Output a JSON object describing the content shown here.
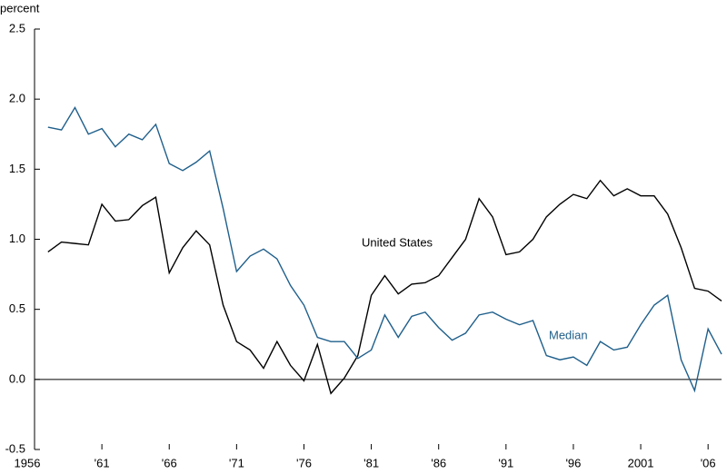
{
  "chart_data": {
    "type": "line",
    "y_axis_label": "percent",
    "x": [
      1957,
      1958,
      1959,
      1960,
      1961,
      1962,
      1963,
      1964,
      1965,
      1966,
      1967,
      1968,
      1969,
      1970,
      1971,
      1972,
      1973,
      1974,
      1975,
      1976,
      1977,
      1978,
      1979,
      1980,
      1981,
      1982,
      1983,
      1984,
      1985,
      1986,
      1987,
      1988,
      1989,
      1990,
      1991,
      1992,
      1993,
      1994,
      1995,
      1996,
      1997,
      1998,
      1999,
      2000,
      2001,
      2002,
      2003,
      2004,
      2005,
      2006,
      2007
    ],
    "series": [
      {
        "name": "United States",
        "color": "#000000",
        "values": [
          0.91,
          0.98,
          0.97,
          0.96,
          1.25,
          1.13,
          1.14,
          1.24,
          1.3,
          0.76,
          0.94,
          1.06,
          0.96,
          0.53,
          0.27,
          0.21,
          0.08,
          0.27,
          0.1,
          -0.01,
          0.25,
          -0.1,
          0.01,
          0.17,
          0.6,
          0.74,
          0.61,
          0.68,
          0.69,
          0.74,
          0.87,
          1.0,
          1.29,
          1.16,
          0.89,
          0.91,
          1.0,
          1.16,
          1.25,
          1.32,
          1.29,
          1.42,
          1.31,
          1.36,
          1.31,
          1.31,
          1.18,
          0.94,
          0.65,
          0.63,
          0.56
        ]
      },
      {
        "name": "Median",
        "color": "#1f5f8b",
        "values": [
          1.8,
          1.78,
          1.94,
          1.75,
          1.79,
          1.66,
          1.75,
          1.71,
          1.82,
          1.54,
          1.49,
          1.55,
          1.63,
          1.22,
          0.77,
          0.88,
          0.93,
          0.86,
          0.67,
          0.53,
          0.3,
          0.27,
          0.27,
          0.15,
          0.21,
          0.46,
          0.3,
          0.45,
          0.48,
          0.37,
          0.28,
          0.33,
          0.46,
          0.48,
          0.43,
          0.39,
          0.42,
          0.17,
          0.14,
          0.16,
          0.1,
          0.27,
          0.21,
          0.23,
          0.39,
          0.53,
          0.6,
          0.14,
          -0.08,
          0.36,
          0.18
        ]
      }
    ],
    "xlim": [
      1956,
      2007
    ],
    "xticks": [
      1956,
      {
        "value": 1961,
        "label": "'61"
      },
      {
        "value": 1966,
        "label": "'66"
      },
      {
        "value": 1971,
        "label": "'71"
      },
      {
        "value": 1976,
        "label": "'76"
      },
      {
        "value": 1981,
        "label": "'81"
      },
      {
        "value": 1986,
        "label": "'86"
      },
      {
        "value": 1991,
        "label": "'91"
      },
      {
        "value": 1996,
        "label": "'96"
      },
      2001,
      {
        "value": 2006,
        "label": "'06"
      }
    ],
    "ylim": [
      -0.5,
      2.5
    ],
    "yticks": [
      2.5,
      {
        "value": 2,
        "label": "2.0"
      },
      1.5,
      {
        "value": 1,
        "label": "1.0"
      },
      0.5,
      {
        "value": 0,
        "label": "0.0"
      },
      -0.5
    ]
  }
}
